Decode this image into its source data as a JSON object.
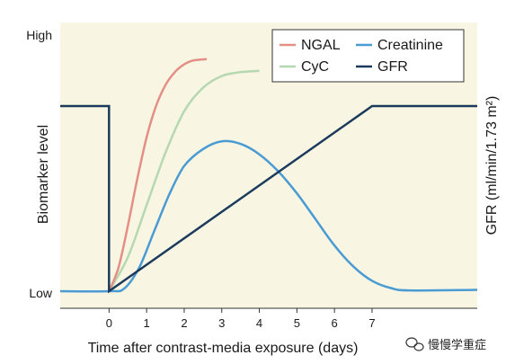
{
  "chart_data": {
    "type": "line",
    "xlabel": "Time after contrast-media exposure (days)",
    "ylabel_left": "Biomarker level",
    "ylabel_right": "GFR (ml/min/1.73 m²)",
    "y_tick_high": "High",
    "y_tick_low": "Low",
    "x_ticks": [
      0,
      1,
      2,
      3,
      4,
      5,
      6,
      7
    ],
    "xlim": [
      -1.3,
      9.8
    ],
    "ylim": [
      0,
      10
    ],
    "grid": false,
    "legend_position": "top-right",
    "series": [
      {
        "name": "NGAL",
        "color": "#e38f86",
        "points": [
          [
            0,
            0
          ],
          [
            0.25,
            0.9
          ],
          [
            0.5,
            2.5
          ],
          [
            0.75,
            4.3
          ],
          [
            1.0,
            5.9
          ],
          [
            1.25,
            7.1
          ],
          [
            1.5,
            7.9
          ],
          [
            1.75,
            8.4
          ],
          [
            2.0,
            8.7
          ],
          [
            2.25,
            8.85
          ],
          [
            2.6,
            8.9
          ]
        ]
      },
      {
        "name": "CyC",
        "color": "#b6d8b1",
        "points": [
          [
            0,
            0
          ],
          [
            0.5,
            1.3
          ],
          [
            1.0,
            3.3
          ],
          [
            1.5,
            5.3
          ],
          [
            2.0,
            6.9
          ],
          [
            2.5,
            7.8
          ],
          [
            3.0,
            8.25
          ],
          [
            3.5,
            8.4
          ],
          [
            4.0,
            8.45
          ]
        ]
      },
      {
        "name": "Creatinine",
        "color": "#4a9bd4",
        "points": [
          [
            -1.3,
            0
          ],
          [
            0,
            0
          ],
          [
            0.4,
            0.1
          ],
          [
            0.8,
            0.9
          ],
          [
            1.2,
            2.3
          ],
          [
            1.6,
            3.7
          ],
          [
            2.0,
            4.8
          ],
          [
            2.5,
            5.45
          ],
          [
            3.0,
            5.75
          ],
          [
            3.5,
            5.65
          ],
          [
            4.0,
            5.25
          ],
          [
            4.5,
            4.6
          ],
          [
            5.0,
            3.75
          ],
          [
            5.5,
            2.75
          ],
          [
            6.0,
            1.75
          ],
          [
            6.5,
            0.95
          ],
          [
            7.0,
            0.4
          ],
          [
            7.5,
            0.12
          ],
          [
            8.0,
            0.03
          ],
          [
            9.8,
            0.05
          ]
        ]
      },
      {
        "name": "GFR",
        "color": "#1b3a5c",
        "points": [
          [
            -1.3,
            7.1
          ],
          [
            0,
            7.1
          ],
          [
            0,
            0
          ],
          [
            7.0,
            7.1
          ],
          [
            9.8,
            7.1
          ]
        ]
      }
    ]
  },
  "watermark": {
    "text": "慢慢学重症",
    "icon": "wechat-bubble-icon"
  },
  "colors": {
    "plot_background": "#f8f6e3"
  }
}
